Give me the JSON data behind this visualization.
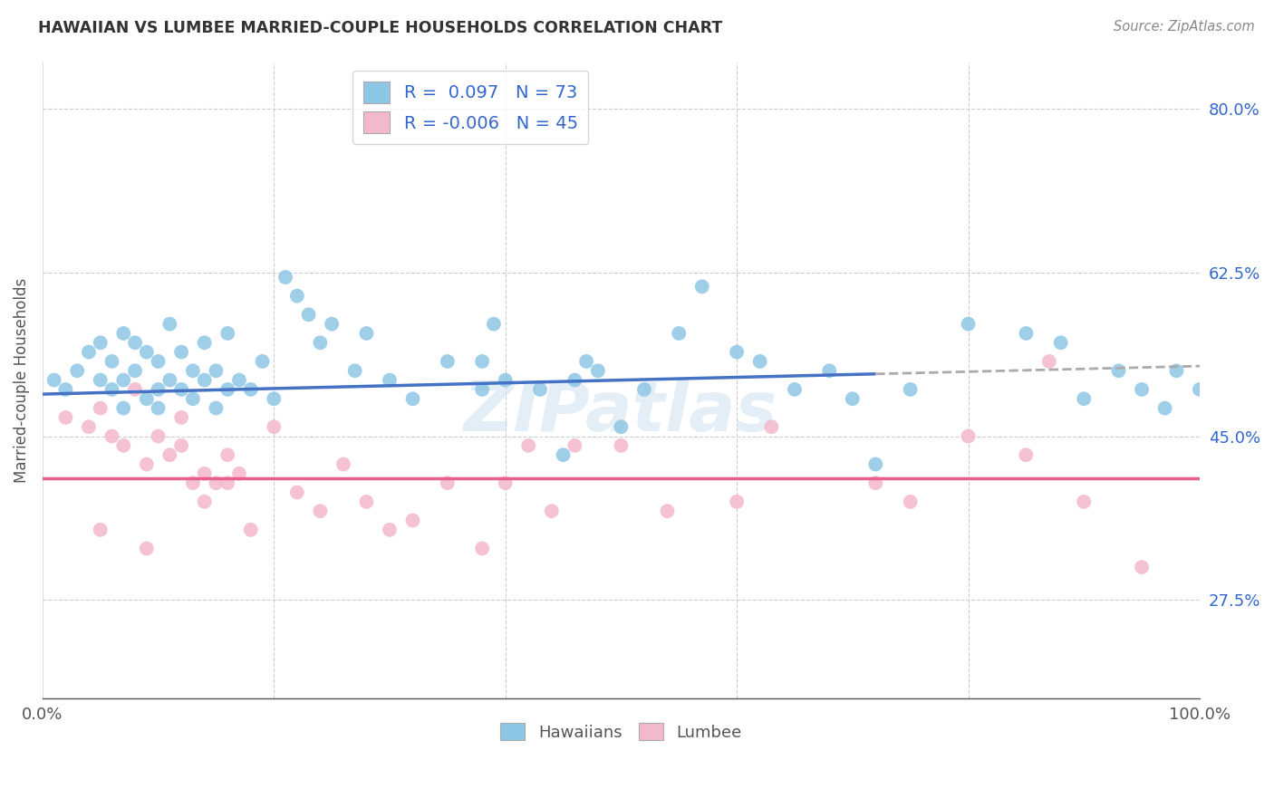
{
  "title": "HAWAIIAN VS LUMBEE MARRIED-COUPLE HOUSEHOLDS CORRELATION CHART",
  "source": "Source: ZipAtlas.com",
  "ylabel": "Married-couple Households",
  "xlim": [
    0,
    100
  ],
  "ylim": [
    17,
    85
  ],
  "yticks": [
    27.5,
    45.0,
    62.5,
    80.0
  ],
  "xtick_labels": [
    "0.0%",
    "",
    "",
    "",
    "",
    "100.0%"
  ],
  "legend_label1": "Hawaiians",
  "legend_label2": "Lumbee",
  "R1": 0.097,
  "N1": 73,
  "R2": -0.006,
  "N2": 45,
  "blue_color": "#8EC6E6",
  "pink_color": "#F4B8CC",
  "blue_line_color": "#4472C4",
  "pink_line_color": "#E8608A",
  "dash_color": "#AAAAAA",
  "watermark": "ZIPatlas",
  "blue_trend_x0": 0,
  "blue_trend_y0": 49.5,
  "blue_trend_x1": 100,
  "blue_trend_y1": 52.5,
  "blue_solid_end": 72,
  "pink_trend_y": 40.5,
  "hawaiian_x": [
    1,
    2,
    3,
    4,
    5,
    5,
    6,
    6,
    7,
    7,
    7,
    8,
    8,
    9,
    9,
    10,
    10,
    10,
    11,
    11,
    12,
    12,
    13,
    13,
    14,
    14,
    15,
    15,
    16,
    16,
    17,
    18,
    19,
    20,
    21,
    22,
    23,
    24,
    25,
    27,
    28,
    30,
    32,
    35,
    38,
    40,
    43,
    45,
    48,
    50,
    52,
    55,
    57,
    60,
    62,
    65,
    68,
    70,
    72,
    75,
    80,
    85,
    88,
    90,
    93,
    95,
    97,
    98,
    100,
    38,
    39,
    46,
    47
  ],
  "hawaiian_y": [
    51,
    50,
    52,
    54,
    51,
    55,
    53,
    50,
    51,
    48,
    56,
    52,
    55,
    49,
    54,
    50,
    48,
    53,
    51,
    57,
    50,
    54,
    52,
    49,
    51,
    55,
    48,
    52,
    50,
    56,
    51,
    50,
    53,
    49,
    62,
    60,
    58,
    55,
    57,
    52,
    56,
    51,
    49,
    53,
    50,
    51,
    50,
    43,
    52,
    46,
    50,
    56,
    61,
    54,
    53,
    50,
    52,
    49,
    42,
    50,
    57,
    56,
    55,
    49,
    52,
    50,
    48,
    52,
    50,
    53,
    57,
    51,
    53
  ],
  "lumbee_x": [
    2,
    4,
    5,
    6,
    7,
    8,
    9,
    10,
    11,
    12,
    13,
    14,
    14,
    15,
    16,
    17,
    18,
    20,
    22,
    24,
    26,
    28,
    30,
    32,
    35,
    38,
    40,
    42,
    44,
    46,
    50,
    54,
    60,
    63,
    72,
    75,
    80,
    85,
    87,
    90,
    95,
    5,
    9,
    12,
    16
  ],
  "lumbee_y": [
    47,
    46,
    48,
    45,
    44,
    50,
    42,
    45,
    43,
    47,
    40,
    41,
    38,
    40,
    43,
    41,
    35,
    46,
    39,
    37,
    42,
    38,
    35,
    36,
    40,
    33,
    40,
    44,
    37,
    44,
    44,
    37,
    38,
    46,
    40,
    38,
    45,
    43,
    53,
    38,
    31,
    35,
    33,
    44,
    40
  ]
}
